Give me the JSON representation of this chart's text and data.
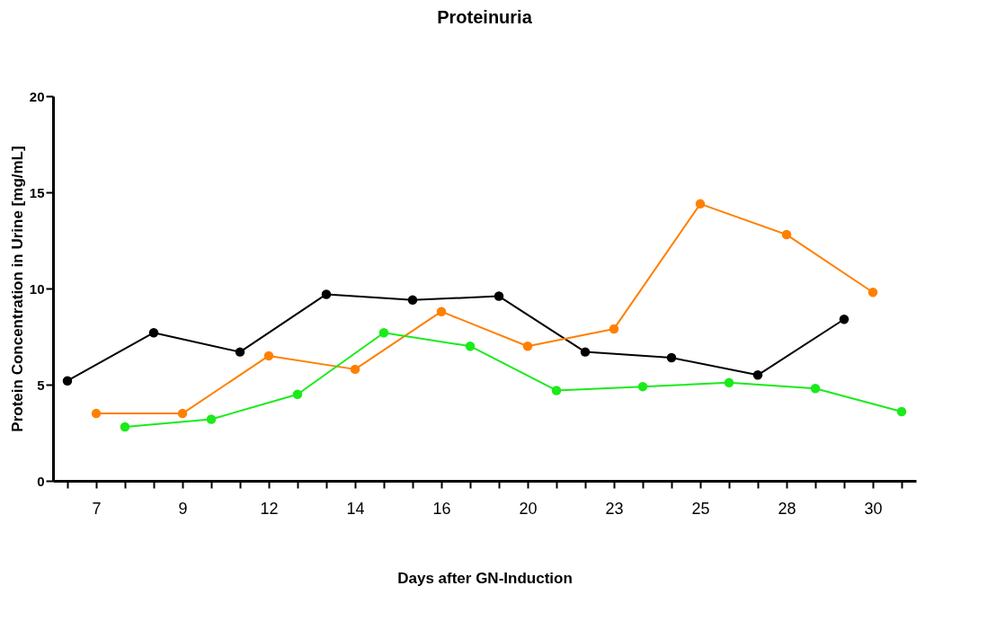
{
  "chart_data": {
    "type": "line",
    "title": "Proteinuria",
    "xlabel": "Days after GN-Induction",
    "ylabel": "Protein Concentration in Urine [mg/mL]",
    "categories": [
      null,
      "7",
      null,
      null,
      "9",
      null,
      null,
      "12",
      null,
      null,
      "14",
      null,
      null,
      "16",
      null,
      null,
      "20",
      null,
      null,
      "23",
      null,
      null,
      "25",
      null,
      null,
      "28",
      null,
      null,
      "30",
      null
    ],
    "series": [
      {
        "color": "#000000",
        "values": [
          5.2,
          null,
          null,
          7.7,
          null,
          null,
          6.7,
          null,
          null,
          9.7,
          null,
          null,
          9.4,
          null,
          null,
          9.6,
          null,
          null,
          6.7,
          null,
          null,
          6.4,
          null,
          null,
          5.5,
          null,
          null,
          8.4,
          null,
          null
        ]
      },
      {
        "color": "#ff8000",
        "values": [
          null,
          3.5,
          null,
          null,
          3.5,
          null,
          null,
          6.5,
          null,
          null,
          5.8,
          null,
          null,
          8.8,
          null,
          null,
          7.0,
          null,
          null,
          7.9,
          null,
          null,
          14.4,
          null,
          null,
          12.8,
          null,
          null,
          9.8,
          null
        ]
      },
      {
        "color": "#1aeb1a",
        "values": [
          null,
          null,
          2.8,
          null,
          null,
          3.2,
          null,
          null,
          4.5,
          null,
          null,
          7.7,
          null,
          null,
          7.0,
          null,
          null,
          4.7,
          null,
          null,
          4.9,
          null,
          null,
          5.1,
          null,
          null,
          4.8,
          null,
          null,
          3.6
        ]
      }
    ],
    "ylim": [
      0,
      20
    ],
    "yticks": [
      0,
      5,
      10,
      15,
      20
    ],
    "grid": false,
    "marker": "circle",
    "line_style": "solid"
  }
}
